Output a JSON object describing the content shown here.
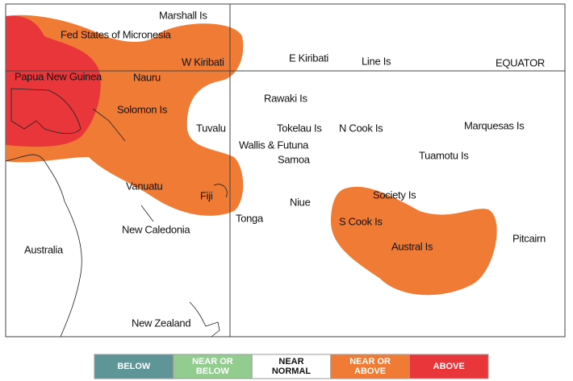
{
  "places": [
    "Marshall Is",
    "Fed States of Micronesia",
    "W Kiribati",
    "E Kiribati",
    "Line Is",
    "EQUATOR",
    "Papua New Guinea",
    "Nauru",
    "Rawaki Is",
    "Solomon Is",
    "Tuvalu",
    "Tokelau Is",
    "N Cook Is",
    "Marquesas Is",
    "Wallis & Futuna",
    "Samoa",
    "Tuamotu Is",
    "Vanuatu",
    "Fiji",
    "Society Is",
    "Niue",
    "Tonga",
    "S Cook Is",
    "New Caledonia",
    "Pitcairn",
    "Australia",
    "Austral Is",
    "New Zealand"
  ],
  "legend": [
    {
      "lines": [
        "BELOW"
      ],
      "color": "#5e9597"
    },
    {
      "lines": [
        "NEAR OR",
        "BELOW"
      ],
      "color": "#93cc8f"
    },
    {
      "lines": [
        "NEAR",
        "NORMAL"
      ],
      "color": "#ffffff"
    },
    {
      "lines": [
        "NEAR OR",
        "ABOVE"
      ],
      "color": "#ef7b35"
    },
    {
      "lines": [
        "ABOVE"
      ],
      "color": "#e8363b"
    }
  ]
}
